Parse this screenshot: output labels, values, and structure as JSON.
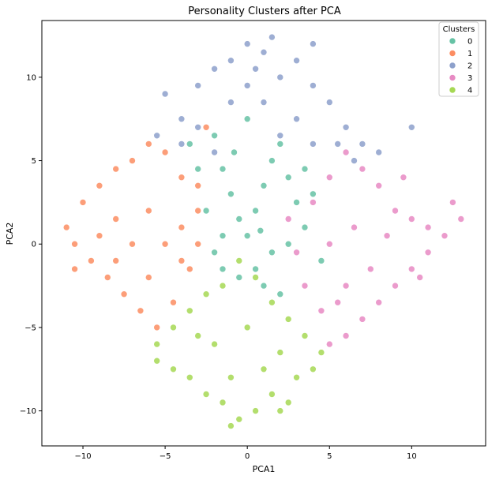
{
  "chart_data": {
    "type": "scatter",
    "title": "Personality Clusters after PCA",
    "xlabel": "PCA1",
    "ylabel": "PCA2",
    "xlim": [
      -12.5,
      14.5
    ],
    "ylim": [
      -12.1,
      13.4
    ],
    "xticks": [
      -10,
      -5,
      0,
      5,
      10
    ],
    "yticks": [
      -10,
      -5,
      0,
      5,
      10
    ],
    "xtick_labels": [
      "−10",
      "−5",
      "0",
      "5",
      "10"
    ],
    "ytick_labels": [
      "−10",
      "−5",
      "0",
      "5",
      "10"
    ],
    "grid": false,
    "legend": {
      "title": "Clusters",
      "placement": "top-right"
    },
    "series": [
      {
        "name": "0",
        "color": "#66c2a5",
        "points": [
          [
            -2.0,
            6.5
          ],
          [
            -1.5,
            4.5
          ],
          [
            -1.0,
            3.0
          ],
          [
            -0.5,
            1.5
          ],
          [
            0.0,
            0.5
          ],
          [
            0.5,
            2.0
          ],
          [
            1.0,
            3.5
          ],
          [
            1.5,
            5.0
          ],
          [
            2.0,
            6.0
          ],
          [
            2.5,
            4.0
          ],
          [
            3.0,
            2.5
          ],
          [
            3.5,
            1.0
          ],
          [
            4.0,
            3.0
          ],
          [
            2.5,
            0.0
          ],
          [
            1.5,
            -0.5
          ],
          [
            0.5,
            -1.5
          ],
          [
            -0.5,
            -2.0
          ],
          [
            -1.5,
            -1.5
          ],
          [
            -2.0,
            -0.5
          ],
          [
            -2.5,
            2.0
          ],
          [
            -3.0,
            4.5
          ],
          [
            -3.5,
            6.0
          ],
          [
            0.0,
            7.5
          ],
          [
            1.0,
            -2.5
          ],
          [
            2.0,
            -3.0
          ],
          [
            4.5,
            -1.0
          ],
          [
            3.5,
            4.5
          ],
          [
            -1.5,
            0.5
          ],
          [
            0.8,
            0.8
          ],
          [
            -0.8,
            5.5
          ]
        ]
      },
      {
        "name": "1",
        "color": "#fc8d62",
        "points": [
          [
            -11.0,
            1.0
          ],
          [
            -10.5,
            0.0
          ],
          [
            -10.0,
            2.5
          ],
          [
            -9.5,
            -1.0
          ],
          [
            -9.0,
            3.5
          ],
          [
            -8.5,
            -2.0
          ],
          [
            -8.0,
            4.5
          ],
          [
            -7.5,
            -3.0
          ],
          [
            -7.0,
            5.0
          ],
          [
            -6.5,
            -4.0
          ],
          [
            -6.0,
            6.0
          ],
          [
            -5.5,
            -5.0
          ],
          [
            -5.0,
            5.5
          ],
          [
            -4.5,
            -3.5
          ],
          [
            -4.0,
            4.0
          ],
          [
            -3.5,
            -1.5
          ],
          [
            -3.0,
            2.0
          ],
          [
            -3.0,
            0.0
          ],
          [
            -5.0,
            0.0
          ],
          [
            -7.0,
            0.0
          ],
          [
            -9.0,
            0.5
          ],
          [
            -6.0,
            2.0
          ],
          [
            -6.0,
            -2.0
          ],
          [
            -8.0,
            1.5
          ],
          [
            -8.0,
            -1.0
          ],
          [
            -4.0,
            1.0
          ],
          [
            -4.0,
            -1.0
          ],
          [
            -2.5,
            7.0
          ],
          [
            -10.5,
            -1.5
          ],
          [
            -3.0,
            3.5
          ]
        ]
      },
      {
        "name": "2",
        "color": "#8da0cb",
        "points": [
          [
            -5.0,
            9.0
          ],
          [
            -4.0,
            7.5
          ],
          [
            -3.0,
            9.5
          ],
          [
            -2.0,
            10.5
          ],
          [
            -1.0,
            11.0
          ],
          [
            0.0,
            12.0
          ],
          [
            1.0,
            11.5
          ],
          [
            1.5,
            12.4
          ],
          [
            2.0,
            10.0
          ],
          [
            3.0,
            11.0
          ],
          [
            4.0,
            9.5
          ],
          [
            5.0,
            8.5
          ],
          [
            6.0,
            7.0
          ],
          [
            7.0,
            6.0
          ],
          [
            8.0,
            5.5
          ],
          [
            10.0,
            7.0
          ],
          [
            -5.5,
            6.5
          ],
          [
            6.5,
            5.0
          ],
          [
            -1.0,
            8.5
          ],
          [
            1.0,
            8.5
          ],
          [
            3.0,
            7.5
          ],
          [
            -3.0,
            7.0
          ],
          [
            0.0,
            9.5
          ],
          [
            2.0,
            6.5
          ],
          [
            4.0,
            6.0
          ],
          [
            -2.0,
            5.5
          ],
          [
            5.5,
            6.0
          ],
          [
            -4.0,
            6.0
          ],
          [
            0.5,
            10.5
          ],
          [
            4.0,
            12.0
          ]
        ]
      },
      {
        "name": "3",
        "color": "#e78ac3",
        "points": [
          [
            4.0,
            2.5
          ],
          [
            5.0,
            4.0
          ],
          [
            6.0,
            5.5
          ],
          [
            7.0,
            4.5
          ],
          [
            8.0,
            3.5
          ],
          [
            9.0,
            2.0
          ],
          [
            10.0,
            1.5
          ],
          [
            11.0,
            1.0
          ],
          [
            12.0,
            0.5
          ],
          [
            13.0,
            1.5
          ],
          [
            12.5,
            2.5
          ],
          [
            11.0,
            -0.5
          ],
          [
            10.0,
            -1.5
          ],
          [
            9.0,
            -2.5
          ],
          [
            8.0,
            -3.5
          ],
          [
            7.0,
            -4.5
          ],
          [
            6.0,
            -5.5
          ],
          [
            5.0,
            -6.0
          ],
          [
            4.5,
            -4.0
          ],
          [
            3.5,
            -2.5
          ],
          [
            3.0,
            -0.5
          ],
          [
            5.0,
            0.0
          ],
          [
            6.5,
            1.0
          ],
          [
            8.5,
            0.5
          ],
          [
            7.5,
            -1.5
          ],
          [
            6.0,
            -2.5
          ],
          [
            5.5,
            -3.5
          ],
          [
            9.5,
            4.0
          ],
          [
            2.5,
            1.5
          ],
          [
            10.5,
            -2.0
          ]
        ]
      },
      {
        "name": "4",
        "color": "#a6d854",
        "points": [
          [
            -5.5,
            -6.0
          ],
          [
            -4.5,
            -5.0
          ],
          [
            -3.5,
            -4.0
          ],
          [
            -2.5,
            -3.0
          ],
          [
            -1.5,
            -2.5
          ],
          [
            -0.5,
            -1.0
          ],
          [
            0.5,
            -2.0
          ],
          [
            1.5,
            -3.5
          ],
          [
            2.5,
            -4.5
          ],
          [
            3.5,
            -5.5
          ],
          [
            4.5,
            -6.5
          ],
          [
            4.0,
            -7.5
          ],
          [
            3.0,
            -8.0
          ],
          [
            2.5,
            -9.5
          ],
          [
            1.5,
            -9.0
          ],
          [
            0.5,
            -10.0
          ],
          [
            -0.5,
            -10.5
          ],
          [
            -1.0,
            -10.9
          ],
          [
            -1.5,
            -9.5
          ],
          [
            -2.5,
            -9.0
          ],
          [
            -3.5,
            -8.0
          ],
          [
            -4.5,
            -7.5
          ],
          [
            -5.5,
            -7.0
          ],
          [
            0.0,
            -5.0
          ],
          [
            -2.0,
            -6.0
          ],
          [
            2.0,
            -6.5
          ],
          [
            -1.0,
            -8.0
          ],
          [
            1.0,
            -7.5
          ],
          [
            -3.0,
            -5.5
          ],
          [
            2.0,
            -10.0
          ]
        ]
      }
    ]
  }
}
